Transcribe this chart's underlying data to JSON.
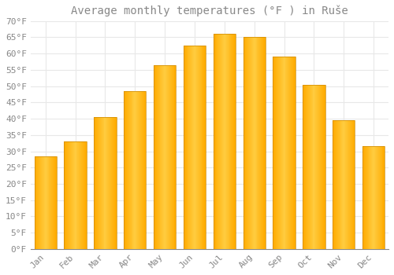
{
  "title": "Average monthly temperatures (°F ) in Ruše",
  "months": [
    "Jan",
    "Feb",
    "Mar",
    "Apr",
    "May",
    "Jun",
    "Jul",
    "Aug",
    "Sep",
    "Oct",
    "Nov",
    "Dec"
  ],
  "values": [
    28.5,
    33.0,
    40.5,
    48.5,
    56.5,
    62.5,
    66.0,
    65.0,
    59.0,
    50.5,
    39.5,
    31.5
  ],
  "bar_color": "#FFAA00",
  "bar_edge_color": "#CC8800",
  "background_color": "#FFFFFF",
  "grid_color": "#E8E8E8",
  "text_color": "#888888",
  "title_color": "#888888",
  "ylim": [
    0,
    70
  ],
  "ytick_step": 5,
  "title_fontsize": 10,
  "tick_fontsize": 8
}
